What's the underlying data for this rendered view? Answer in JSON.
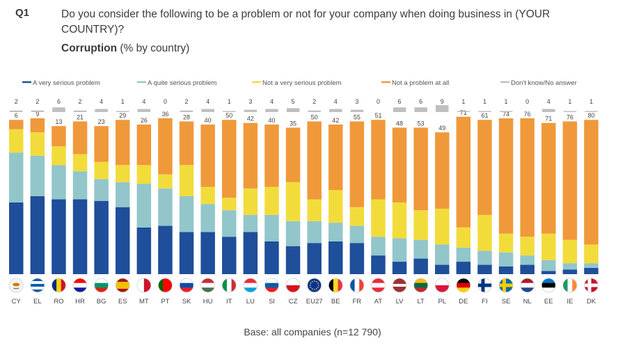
{
  "question": {
    "label": "Q1",
    "text": "Do you consider the following to be a problem or not for your company when doing business in (YOUR COUNTRY)?",
    "subtitle_bold": "Corruption",
    "subtitle_rest": " (% by country)"
  },
  "base_note": "Base: all companies (n=12 790)",
  "colors": {
    "very_serious": "#1f4e9b",
    "quite_serious": "#92c6cb",
    "not_very_serious": "#f2dc3c",
    "not_a_problem": "#f0993a",
    "dont_know": "#bfbfbf"
  },
  "chart_data": {
    "type": "bar",
    "stacked": true,
    "title": "Corruption (% by country)",
    "ylim": [
      0,
      100
    ],
    "legend_position": "top",
    "categories": [
      "CY",
      "EL",
      "RO",
      "HR",
      "BG",
      "ES",
      "MT",
      "PT",
      "SK",
      "HU",
      "IT",
      "LU",
      "SI",
      "CZ",
      "EU27",
      "BE",
      "FR",
      "AT",
      "LV",
      "LT",
      "PL",
      "DE",
      "FI",
      "SE",
      "NL",
      "EE",
      "IE",
      "DK"
    ],
    "series": [
      {
        "name": "A very serious problem",
        "color": "#1f4e9b",
        "values": [
          46,
          50,
          48,
          48,
          47,
          43,
          30,
          31,
          27,
          27,
          24,
          27,
          21,
          18,
          20,
          21,
          20,
          12,
          8,
          10,
          6,
          8,
          6,
          5,
          6,
          2,
          3,
          4
        ]
      },
      {
        "name": "A quite serious problem",
        "color": "#92c6cb",
        "values": [
          32,
          26,
          22,
          18,
          14,
          16,
          28,
          24,
          23,
          18,
          17,
          11,
          17,
          16,
          14,
          12,
          11,
          12,
          15,
          12,
          13,
          9,
          9,
          9,
          6,
          7,
          4,
          3
        ]
      },
      {
        "name": "Not a very serious problem",
        "color": "#f2dc3c",
        "values": [
          15,
          15,
          12,
          11,
          11,
          11,
          12,
          9,
          20,
          11,
          8,
          17,
          18,
          25,
          14,
          21,
          12,
          24,
          23,
          19,
          23,
          13,
          23,
          12,
          12,
          17,
          15,
          12
        ]
      },
      {
        "name": "Not a problem at all",
        "color": "#f0993a",
        "values": [
          6,
          9,
          13,
          21,
          23,
          29,
          26,
          36,
          28,
          40,
          50,
          42,
          40,
          35,
          50,
          42,
          55,
          51,
          48,
          53,
          49,
          71,
          61,
          74,
          76,
          71,
          76,
          80
        ]
      },
      {
        "name": "Don't know/No answer",
        "color": "#bfbfbf",
        "values": [
          2,
          2,
          6,
          2,
          4,
          1,
          4,
          0,
          2,
          4,
          1,
          3,
          4,
          5,
          2,
          4,
          3,
          0,
          6,
          6,
          9,
          1,
          1,
          1,
          0,
          4,
          1,
          1
        ]
      }
    ]
  }
}
